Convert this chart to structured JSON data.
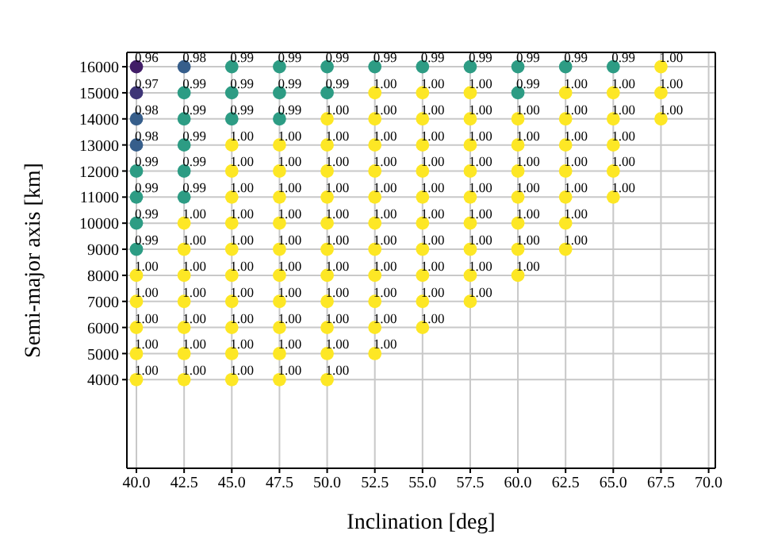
{
  "chart_data": {
    "type": "heatmap",
    "xlabel": "Inclination [deg]",
    "ylabel": "Semi-major axis [km]",
    "grid": true,
    "marker": "circle",
    "cell_labels": [
      [
        "0.96",
        "0.98",
        "0.99",
        "0.99",
        "0.99",
        "0.99",
        "0.99",
        "0.99",
        "0.99",
        "0.99",
        "0.99",
        "1.00",
        null
      ],
      [
        "0.97",
        "0.99",
        "0.99",
        "0.99",
        "0.99",
        "1.00",
        "1.00",
        "1.00",
        "0.99",
        "1.00",
        "1.00",
        "1.00",
        null
      ],
      [
        "0.98",
        "0.99",
        "0.99",
        "0.99",
        "1.00",
        "1.00",
        "1.00",
        "1.00",
        "1.00",
        "1.00",
        "1.00",
        "1.00",
        null
      ],
      [
        "0.98",
        "0.99",
        "1.00",
        "1.00",
        "1.00",
        "1.00",
        "1.00",
        "1.00",
        "1.00",
        "1.00",
        "1.00",
        null,
        null
      ],
      [
        "0.99",
        "0.99",
        "1.00",
        "1.00",
        "1.00",
        "1.00",
        "1.00",
        "1.00",
        "1.00",
        "1.00",
        "1.00",
        null,
        null
      ],
      [
        "0.99",
        "0.99",
        "1.00",
        "1.00",
        "1.00",
        "1.00",
        "1.00",
        "1.00",
        "1.00",
        "1.00",
        "1.00",
        null,
        null
      ],
      [
        "0.99",
        "1.00",
        "1.00",
        "1.00",
        "1.00",
        "1.00",
        "1.00",
        "1.00",
        "1.00",
        "1.00",
        null,
        null,
        null
      ],
      [
        "0.99",
        "1.00",
        "1.00",
        "1.00",
        "1.00",
        "1.00",
        "1.00",
        "1.00",
        "1.00",
        "1.00",
        null,
        null,
        null
      ],
      [
        "1.00",
        "1.00",
        "1.00",
        "1.00",
        "1.00",
        "1.00",
        "1.00",
        "1.00",
        "1.00",
        null,
        null,
        null,
        null
      ],
      [
        "1.00",
        "1.00",
        "1.00",
        "1.00",
        "1.00",
        "1.00",
        "1.00",
        "1.00",
        null,
        null,
        null,
        null,
        null
      ],
      [
        "1.00",
        "1.00",
        "1.00",
        "1.00",
        "1.00",
        "1.00",
        "1.00",
        null,
        null,
        null,
        null,
        null,
        null
      ],
      [
        "1.00",
        "1.00",
        "1.00",
        "1.00",
        "1.00",
        "1.00",
        null,
        null,
        null,
        null,
        null,
        null,
        null
      ],
      [
        "1.00",
        "1.00",
        "1.00",
        "1.00",
        "1.00",
        null,
        null,
        null,
        null,
        null,
        null,
        null,
        null
      ]
    ],
    "categories": [
      "40.0",
      "42.5",
      "45.0",
      "47.5",
      "50.0",
      "52.5",
      "55.0",
      "57.5",
      "60.0",
      "62.5",
      "65.0",
      "67.5",
      "70.0"
    ],
    "y_categories": [
      "16000",
      "15000",
      "14000",
      "13000",
      "12000",
      "11000",
      "10000",
      "9000",
      "8000",
      "7000",
      "6000",
      "5000",
      "4000"
    ],
    "cells": [
      [
        0.96,
        0.98,
        0.99,
        0.99,
        0.99,
        0.99,
        0.99,
        0.99,
        0.99,
        0.99,
        0.99,
        1,
        null
      ],
      [
        0.97,
        0.99,
        0.99,
        0.99,
        0.99,
        1,
        1,
        1,
        0.99,
        1,
        1,
        1,
        null
      ],
      [
        0.98,
        0.99,
        0.99,
        0.99,
        1,
        1,
        1,
        1,
        1,
        1,
        1,
        1,
        null
      ],
      [
        0.98,
        0.99,
        1,
        1,
        1,
        1,
        1,
        1,
        1,
        1,
        1,
        null,
        null
      ],
      [
        0.99,
        0.99,
        1,
        1,
        1,
        1,
        1,
        1,
        1,
        1,
        1,
        null,
        null
      ],
      [
        0.99,
        0.99,
        1,
        1,
        1,
        1,
        1,
        1,
        1,
        1,
        1,
        null,
        null
      ],
      [
        0.99,
        1,
        1,
        1,
        1,
        1,
        1,
        1,
        1,
        1,
        null,
        null,
        null
      ],
      [
        0.99,
        1,
        1,
        1,
        1,
        1,
        1,
        1,
        1,
        1,
        null,
        null,
        null
      ],
      [
        1,
        1,
        1,
        1,
        1,
        1,
        1,
        1,
        1,
        null,
        null,
        null,
        null
      ],
      [
        1,
        1,
        1,
        1,
        1,
        1,
        1,
        1,
        null,
        null,
        null,
        null,
        null
      ],
      [
        1,
        1,
        1,
        1,
        1,
        1,
        1,
        null,
        null,
        null,
        null,
        null,
        null
      ],
      [
        1,
        1,
        1,
        1,
        1,
        1,
        null,
        null,
        null,
        null,
        null,
        null,
        null
      ],
      [
        1,
        1,
        1,
        1,
        1,
        null,
        null,
        null,
        null,
        null,
        null,
        null,
        null
      ]
    ]
  }
}
